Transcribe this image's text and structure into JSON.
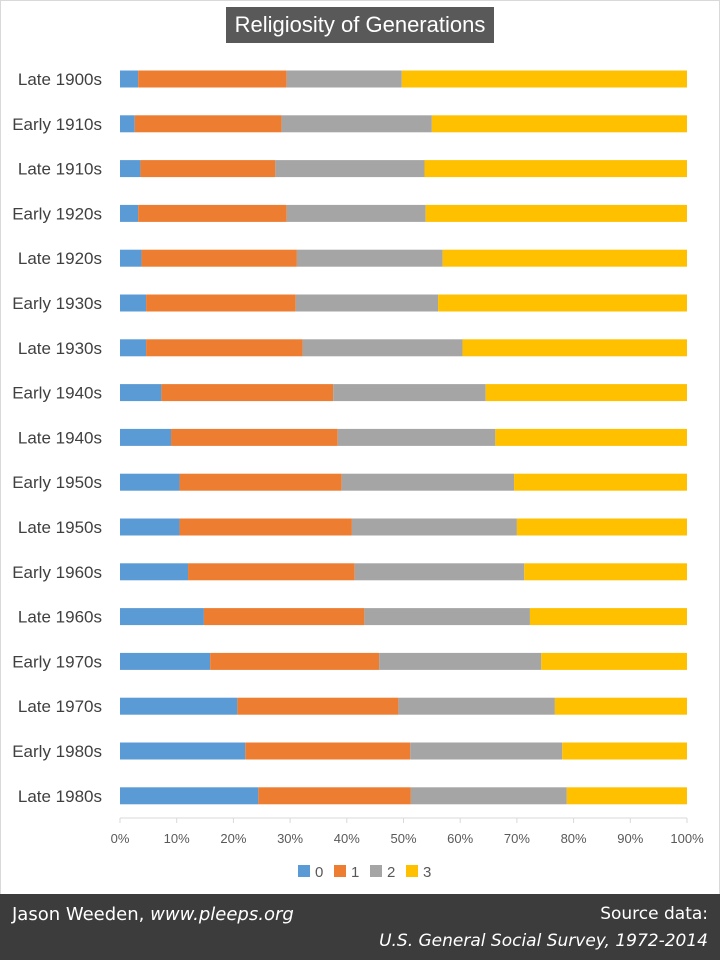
{
  "chart_data": {
    "type": "bar",
    "orientation": "horizontal",
    "stacked": "percent",
    "title": "Religiosity of Generations",
    "categories": [
      "Late 1900s",
      "Early 1910s",
      "Late 1910s",
      "Early 1920s",
      "Late 1920s",
      "Early 1930s",
      "Late 1930s",
      "Early 1940s",
      "Late 1940s",
      "Early 1950s",
      "Late 1950s",
      "Early 1960s",
      "Late 1960s",
      "Early 1970s",
      "Late 1970s",
      "Early 1980s",
      "Late 1980s"
    ],
    "series": [
      {
        "name": "0",
        "color": "#5b9bd5",
        "values": [
          3.2,
          2.6,
          3.6,
          3.2,
          3.8,
          4.6,
          4.6,
          7.3,
          9.0,
          10.5,
          10.5,
          12.0,
          14.8,
          15.9,
          20.7,
          22.1,
          24.4
        ]
      },
      {
        "name": "1",
        "color": "#ed7d31",
        "values": [
          26.2,
          25.9,
          23.8,
          26.2,
          27.4,
          26.4,
          27.6,
          30.3,
          29.4,
          28.6,
          30.4,
          29.4,
          28.3,
          29.8,
          28.4,
          29.1,
          26.9
        ]
      },
      {
        "name": "2",
        "color": "#a5a5a5",
        "values": [
          20.3,
          26.5,
          26.3,
          24.5,
          25.7,
          25.1,
          28.2,
          26.9,
          27.8,
          30.4,
          29.1,
          29.9,
          29.2,
          28.6,
          27.6,
          26.8,
          27.5
        ]
      },
      {
        "name": "3",
        "color": "#ffc000",
        "values": [
          50.3,
          45.0,
          46.3,
          46.1,
          43.1,
          43.9,
          39.6,
          35.5,
          33.8,
          30.5,
          30.0,
          28.7,
          27.7,
          25.7,
          23.3,
          22.0,
          21.2
        ]
      }
    ],
    "x_ticks": [
      "0%",
      "10%",
      "20%",
      "30%",
      "40%",
      "50%",
      "60%",
      "70%",
      "80%",
      "90%",
      "100%"
    ],
    "xlim": [
      0,
      100
    ],
    "grid": false,
    "legend_position": "bottom"
  },
  "footer": {
    "author": "Jason Weeden,",
    "site": "www.pleeps.org",
    "source_label": "Source data:",
    "source": "U.S. General Social Survey, 1972-2014"
  }
}
